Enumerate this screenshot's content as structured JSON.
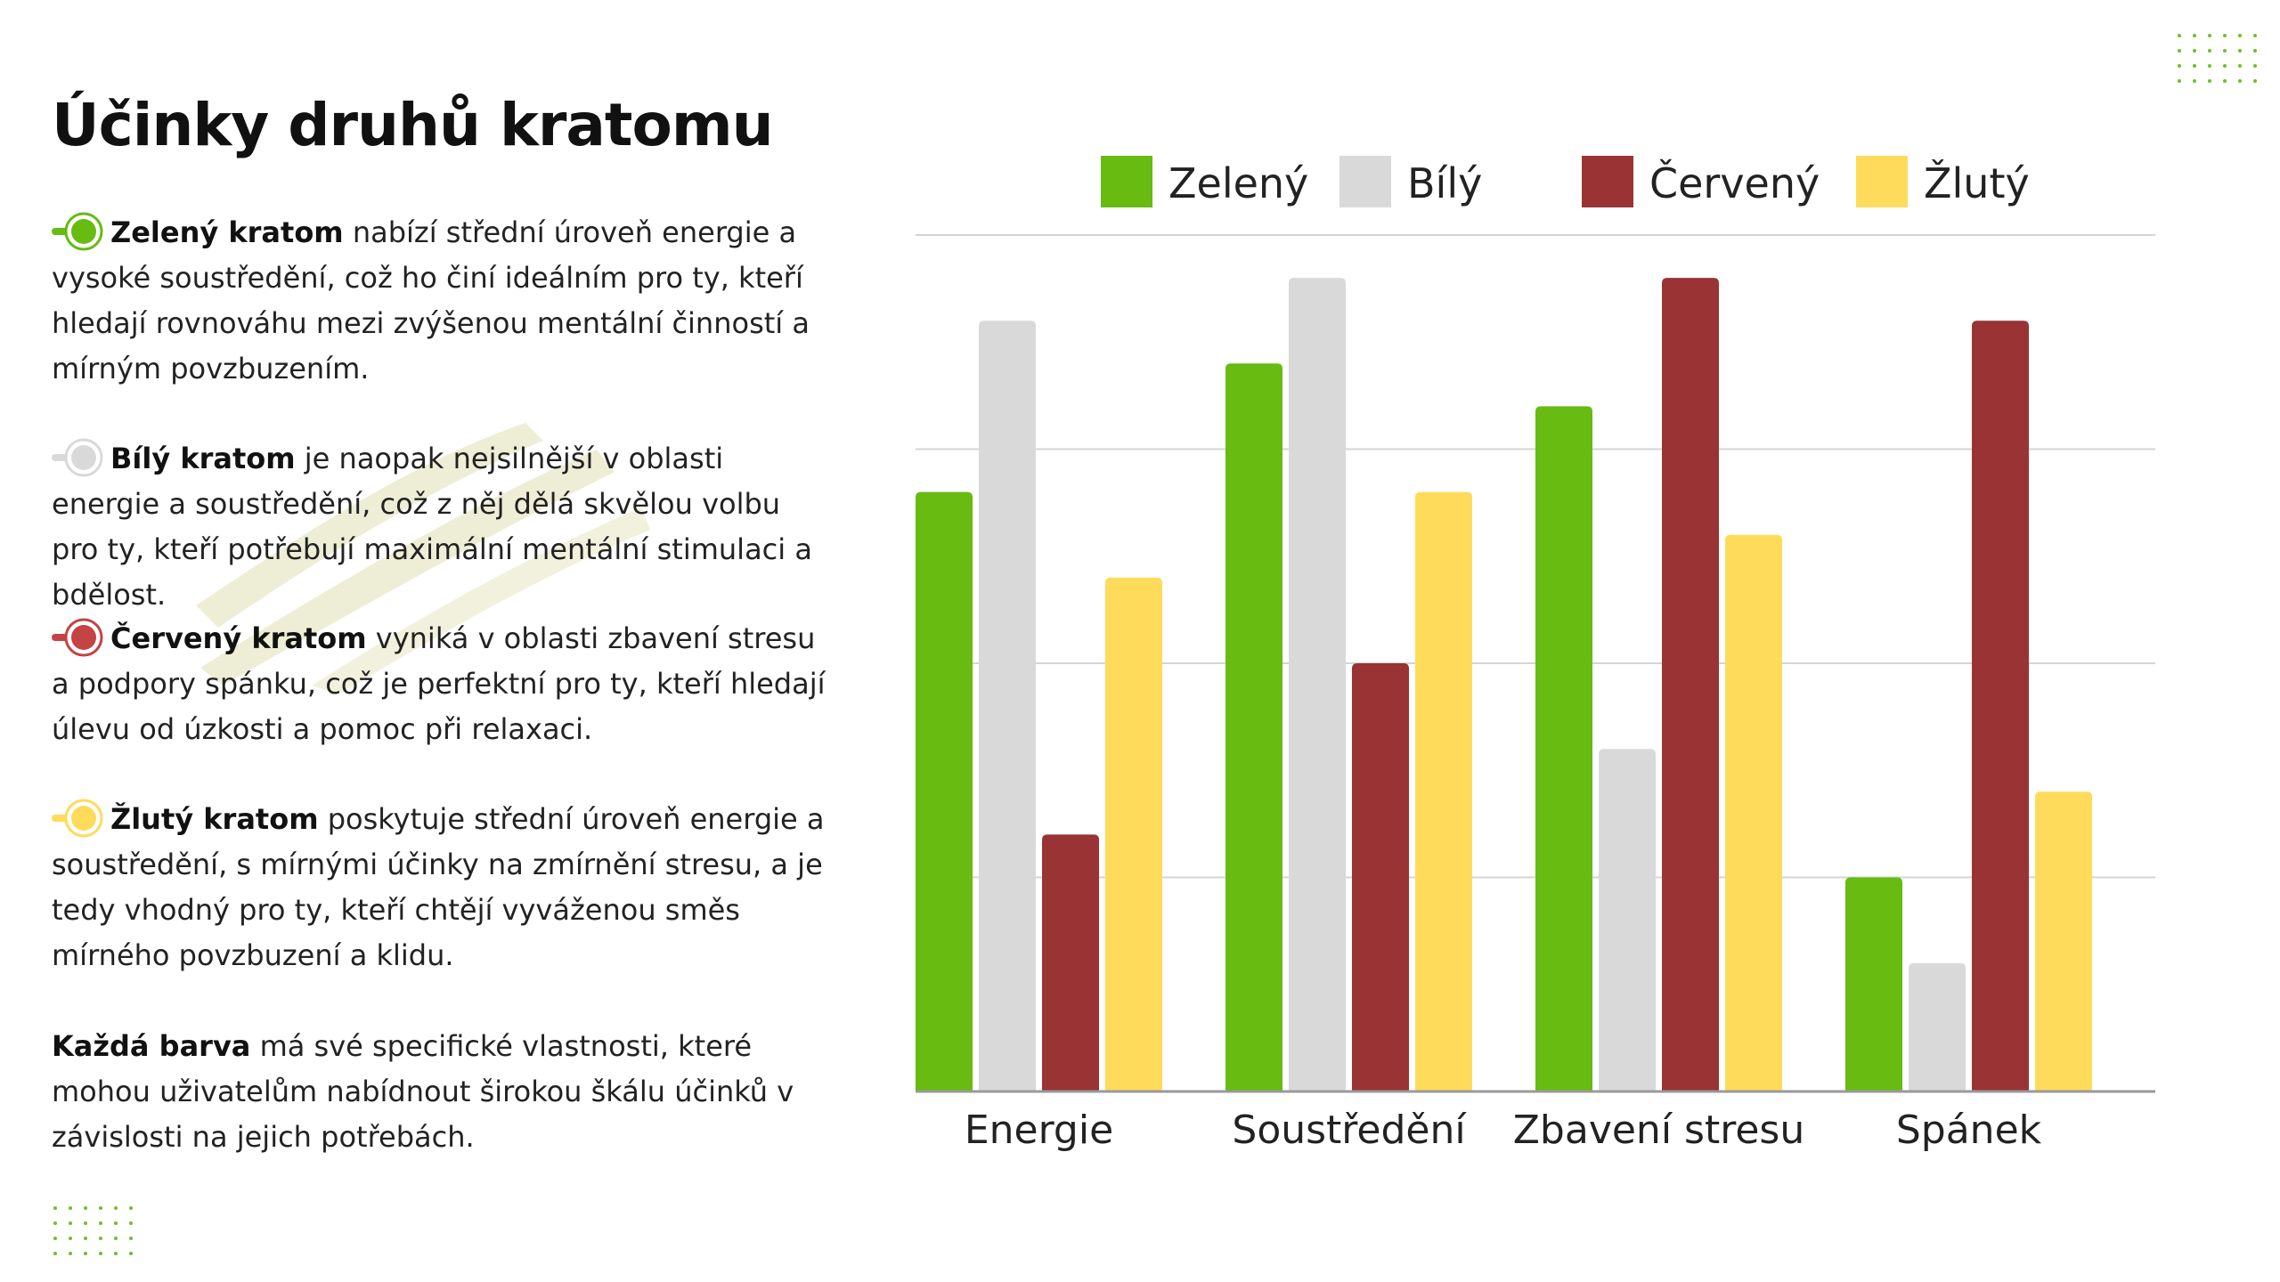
{
  "title": "Účinky druhů kratomu",
  "paragraphs": [
    {
      "key": "green",
      "bold": "Zelený kratom",
      "text": " nabízí střední úroveň energie a vysoké soustředění, což ho činí ideálním pro ty, kteří hledají rovnováhu mezi zvýšenou mentální činností a mírným povzbuzením."
    },
    {
      "key": "white",
      "bold": "Bílý kratom",
      "text": " je naopak nejsilnější v oblasti energie a soustředění, což z něj dělá skvělou volbu pro ty, kteří potřebují maximální mentální stimulaci a bdělost."
    },
    {
      "key": "red",
      "bold": "Červený kratom",
      "text": " vyniká v oblasti zbavení stresu a podpory spánku, což je perfektní pro ty, kteří hledají úlevu od úzkosti a pomoc při relaxaci."
    },
    {
      "key": "yellow",
      "bold": "Žlutý kratom",
      "text": " poskytuje střední úroveň energie a soustředění, s mírnými účinky na zmírnění stresu, a je tedy vhodný pro ty, kteří chtějí vyváženou směs mírného povzbuzení a klidu."
    },
    {
      "key": "each",
      "bold": "Každá barva",
      "text": " má své specifické vlastnosti, které mohou uživatelům nabídnout širokou škálu účinků v závislosti na jejich potřebách."
    }
  ],
  "colors": {
    "green": "#67bb11",
    "white": "#d9d9d9",
    "red": "#993334",
    "yellow": "#ffdb5c",
    "accent_dots": "#6fbf2a",
    "brush": "#eeeed6",
    "grid": "#d4d4d4",
    "axis": "#9a9a9a",
    "text": "#222222"
  },
  "icons": {
    "bullet": "slider-knob-icon",
    "decor_dots": "dot-grid-decoration",
    "decor_brush": "brush-stroke-decoration"
  },
  "chart_data": {
    "type": "bar",
    "title": "",
    "xlabel": "",
    "ylabel": "",
    "ylim": [
      0,
      10
    ],
    "grid": true,
    "legend": "top-center",
    "categories": [
      "Energie",
      "Soustředění",
      "Zbavení stresu",
      "Spánek"
    ],
    "series": [
      {
        "name": "Zelený",
        "color": "#67bb11",
        "values": [
          7,
          8.5,
          8,
          2.5
        ]
      },
      {
        "name": "Bílý",
        "color": "#d9d9d9",
        "values": [
          9,
          9.5,
          4,
          1.5
        ]
      },
      {
        "name": "Červený",
        "color": "#993334",
        "values": [
          3,
          5,
          9.5,
          9
        ]
      },
      {
        "name": "Žlutý",
        "color": "#ffdb5c",
        "values": [
          6,
          7,
          6.5,
          3.5
        ]
      }
    ]
  }
}
